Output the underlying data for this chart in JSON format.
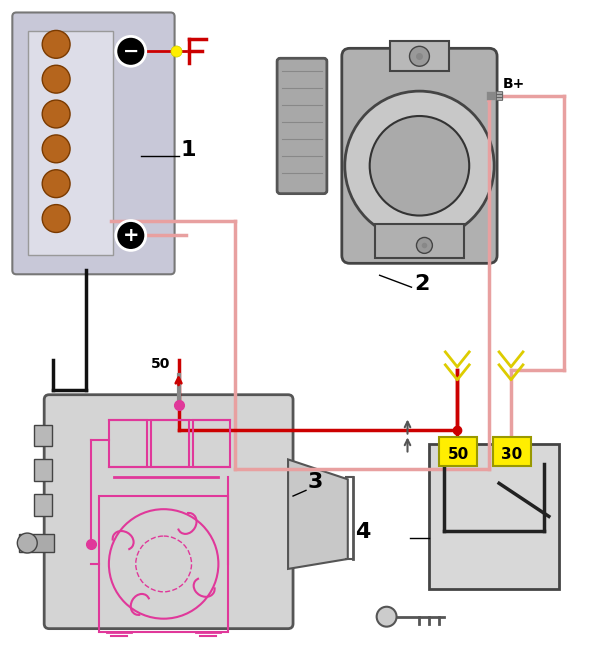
{
  "bg_color": "#ffffff",
  "wire_pos_color": "#e8a0a0",
  "wire_red_color": "#cc0000",
  "wire_black_color": "#111111",
  "wire_pink_color": "#e0389a",
  "component_fill": "#d4d4d4",
  "component_edge": "#555555",
  "yellow_fill": "#ffee00",
  "yellow_edge": "#888800",
  "label_1": "1",
  "label_2": "2",
  "label_3": "3",
  "label_4": "4",
  "label_50": "50",
  "label_30": "30",
  "label_Bplus": "B+"
}
